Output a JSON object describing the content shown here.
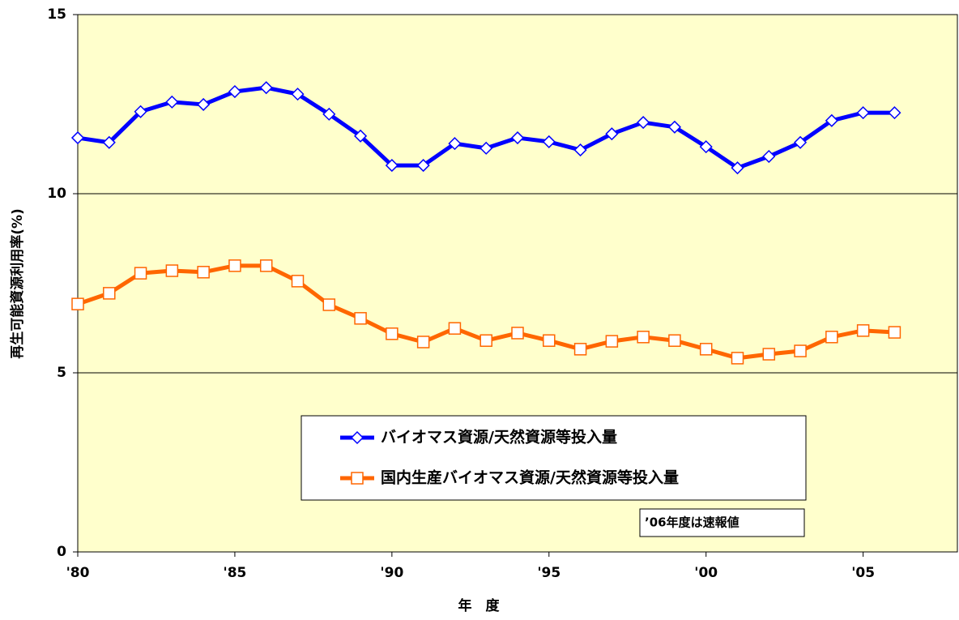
{
  "chart_data": {
    "type": "line",
    "y_label": "再生可能資源利用率(%)",
    "x_label": "年　度",
    "x": [
      1980,
      1981,
      1982,
      1983,
      1984,
      1985,
      1986,
      1987,
      1988,
      1989,
      1990,
      1991,
      1992,
      1993,
      1994,
      1995,
      1996,
      1997,
      1998,
      1999,
      2000,
      2001,
      2002,
      2003,
      2004,
      2005,
      2006
    ],
    "series": [
      {
        "name": "バイオマス資源/天然資源等投入量",
        "color": "#0000ff",
        "marker": "diamond",
        "values": [
          11.56,
          11.43,
          12.29,
          12.56,
          12.49,
          12.85,
          12.96,
          12.78,
          12.22,
          11.61,
          10.79,
          10.79,
          11.4,
          11.27,
          11.56,
          11.45,
          11.22,
          11.67,
          11.99,
          11.86,
          11.31,
          10.72,
          11.04,
          11.43,
          12.04,
          12.26,
          12.26
        ]
      },
      {
        "name": "国内生産バイオマス資源/天然資源等投入量",
        "color": "#ff6600",
        "marker": "square",
        "values": [
          6.92,
          7.22,
          7.78,
          7.85,
          7.81,
          7.99,
          7.99,
          7.56,
          6.9,
          6.52,
          6.09,
          5.86,
          6.24,
          5.9,
          6.11,
          5.9,
          5.66,
          5.88,
          6.0,
          5.9,
          5.66,
          5.41,
          5.52,
          5.61,
          6.0,
          6.18,
          6.13
        ]
      }
    ],
    "xlim": [
      1980,
      2008
    ],
    "xticks": [
      {
        "value": 1980,
        "label": "'80"
      },
      {
        "value": 1985,
        "label": "'85"
      },
      {
        "value": 1990,
        "label": "'90"
      },
      {
        "value": 1995,
        "label": "'95"
      },
      {
        "value": 2000,
        "label": "'00"
      },
      {
        "value": 2005,
        "label": "'05"
      }
    ],
    "ylim": [
      0,
      15
    ],
    "yticks": [
      0,
      5,
      10,
      15
    ],
    "grid": true,
    "background": "#ffffcc",
    "note": "’06年度は速報値"
  }
}
